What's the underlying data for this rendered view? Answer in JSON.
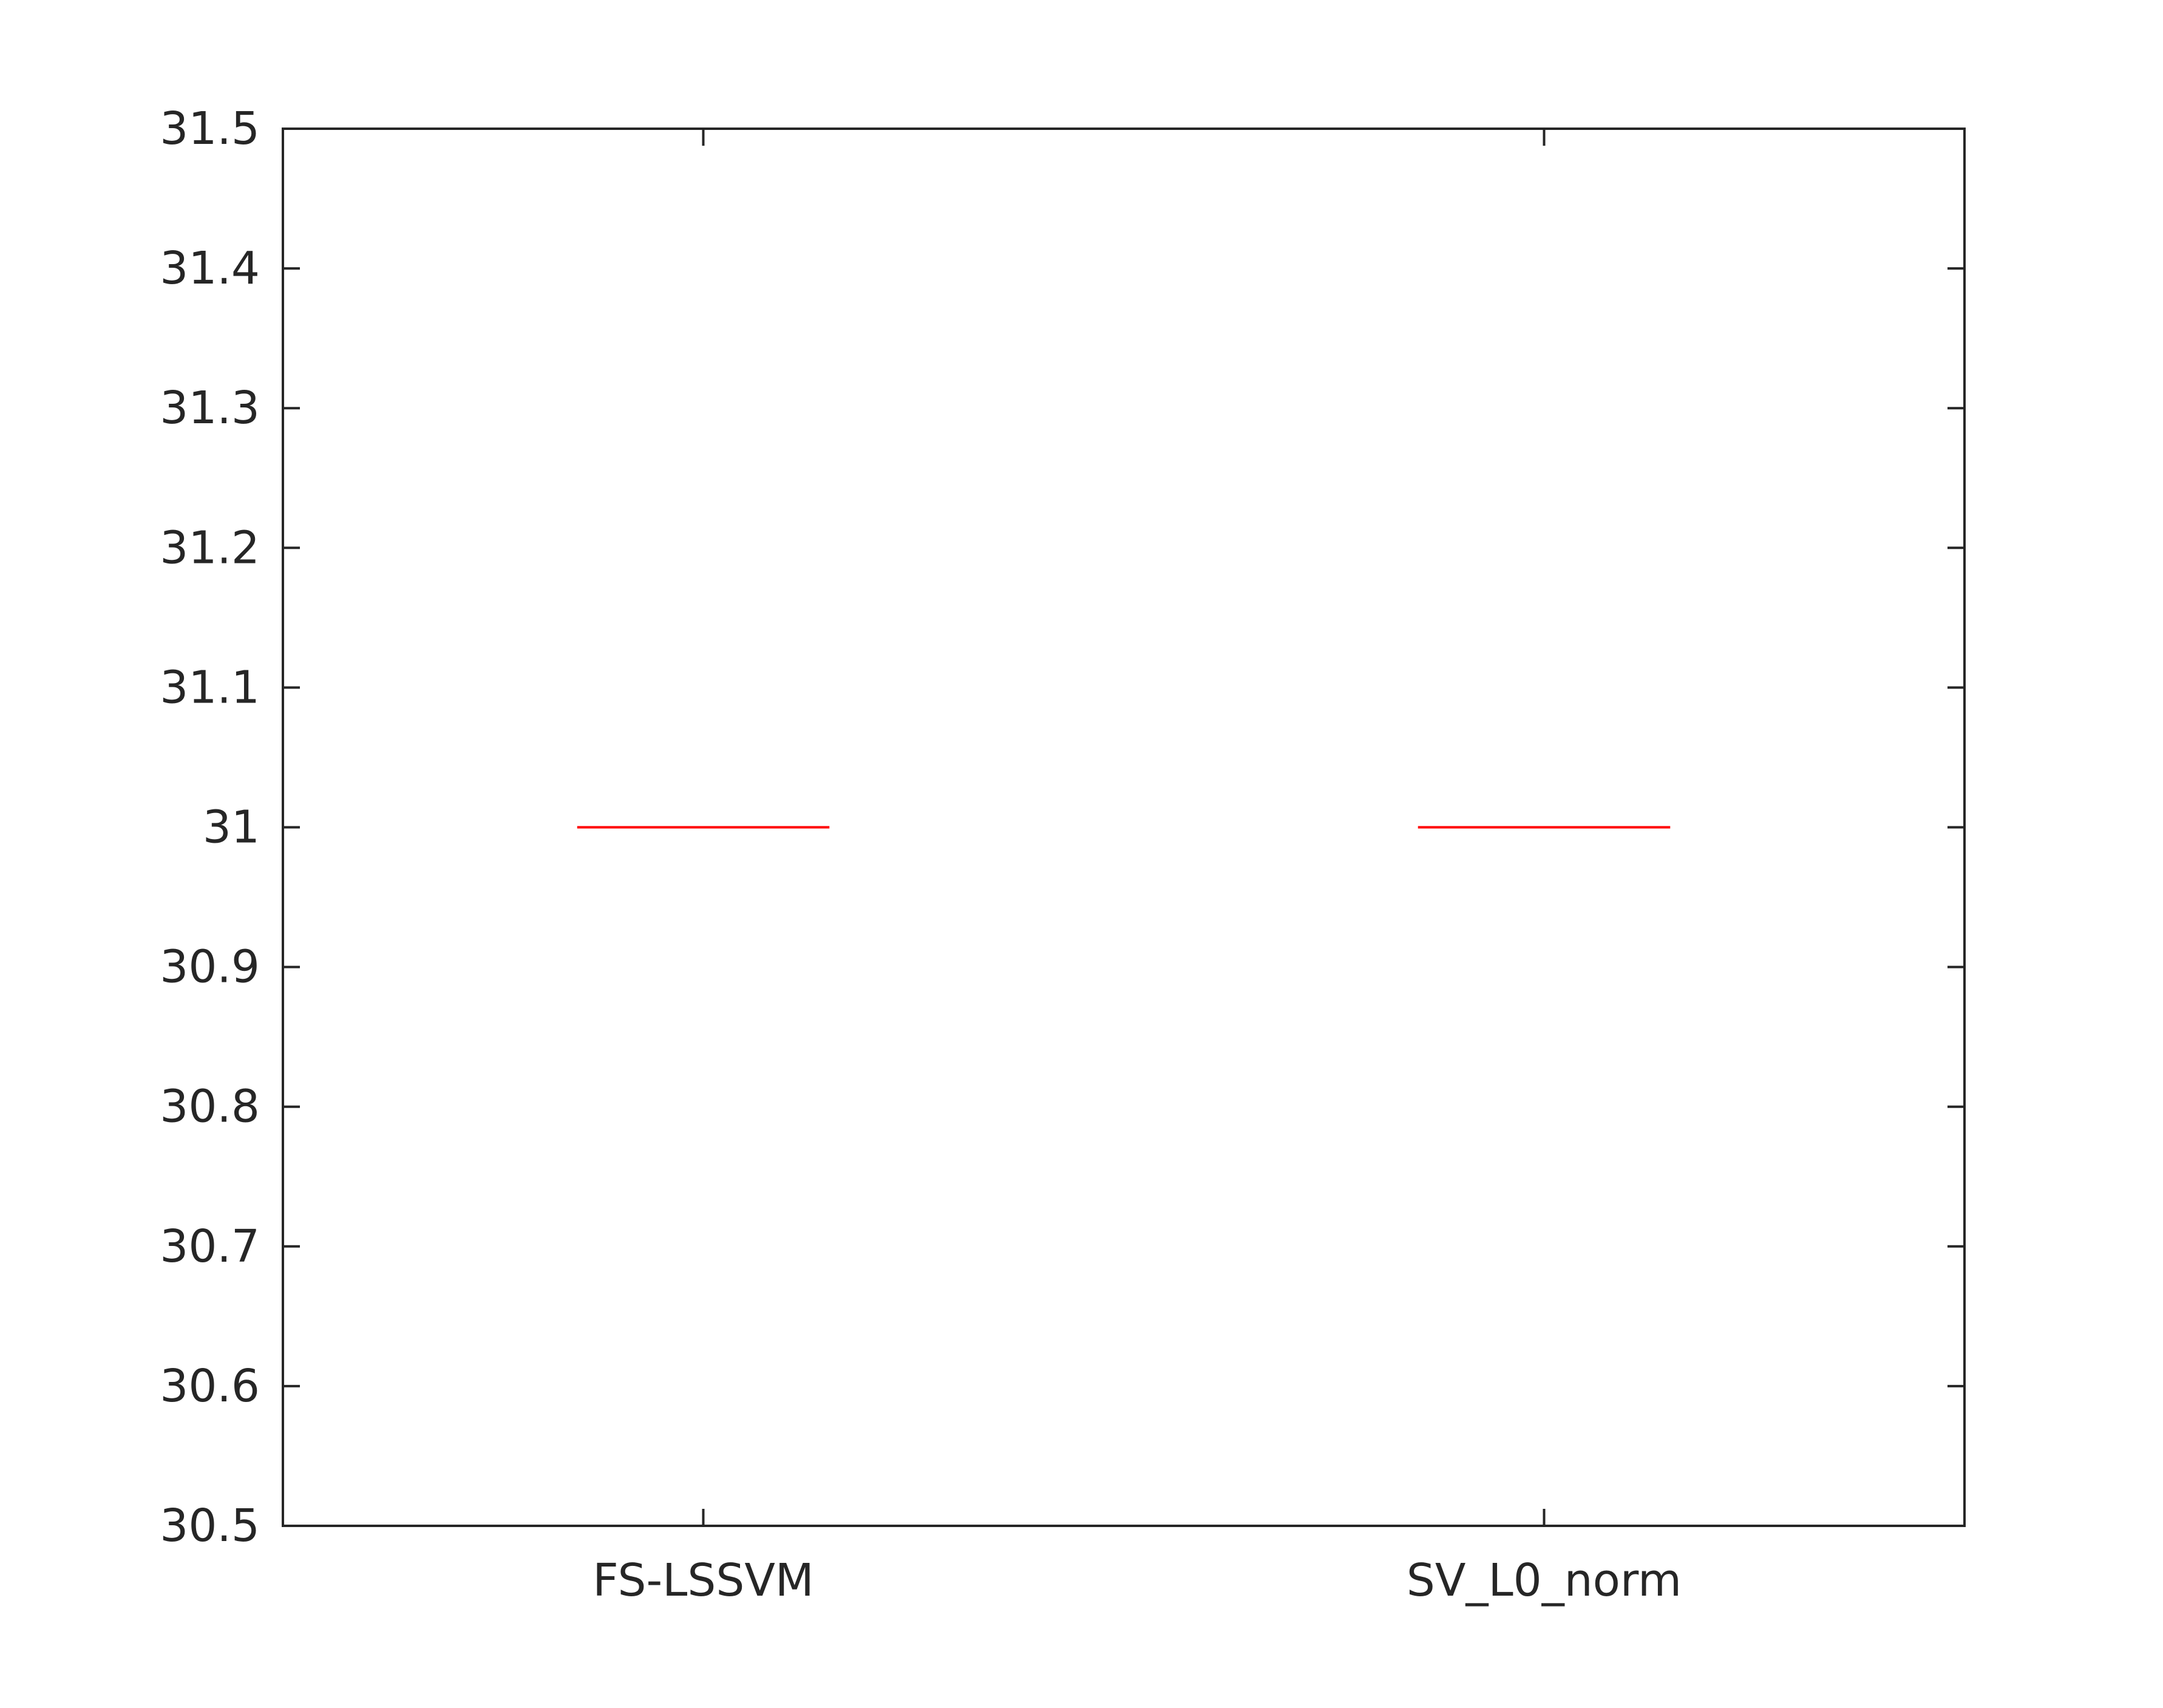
{
  "chart_data": {
    "type": "box",
    "categories": [
      "FS-LSSVM",
      "SV_L0_norm"
    ],
    "series": [
      {
        "values": [
          31,
          31
        ],
        "color": "#ff0000"
      }
    ],
    "ylim": [
      30.5,
      31.5
    ],
    "yticks": [
      "30.5",
      "30.6",
      "30.7",
      "30.8",
      "30.9",
      "31",
      "31.1",
      "31.2",
      "31.3",
      "31.4",
      "31.5"
    ],
    "grid": false,
    "axis_color": "#262626",
    "title": "",
    "xlabel": "",
    "ylabel": ""
  }
}
